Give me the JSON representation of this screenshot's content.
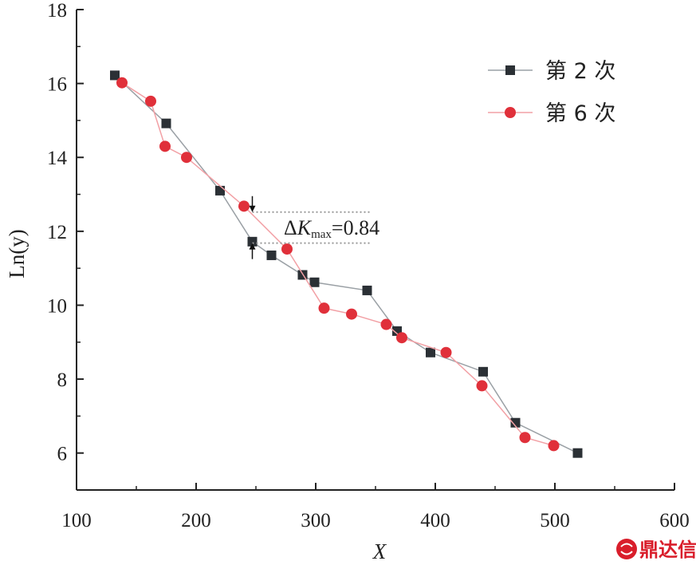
{
  "chart_data": {
    "type": "line",
    "xlabel": "X",
    "ylabel": "Ln(y)",
    "xlim": [
      100,
      600
    ],
    "ylim": [
      5,
      18
    ],
    "x_ticks": [
      100,
      200,
      300,
      400,
      500,
      600
    ],
    "y_ticks": [
      6,
      8,
      10,
      12,
      14,
      16,
      18
    ],
    "grid": false,
    "legend_position": "top-right",
    "series": [
      {
        "name": "第 2 次",
        "color": "#2b3035",
        "line_color": "#9aa0a5",
        "marker": "square",
        "points": [
          [
            132,
            16.22
          ],
          [
            175,
            14.92
          ],
          [
            220,
            13.1
          ],
          [
            247,
            11.72
          ],
          [
            263,
            11.35
          ],
          [
            289,
            10.82
          ],
          [
            299,
            10.62
          ],
          [
            343,
            10.4
          ],
          [
            368,
            9.3
          ],
          [
            396,
            8.72
          ],
          [
            440,
            8.2
          ],
          [
            467,
            6.82
          ],
          [
            519,
            6.0
          ]
        ]
      },
      {
        "name": "第 6 次",
        "color": "#e0303a",
        "line_color": "#f2a0a5",
        "marker": "circle",
        "points": [
          [
            138,
            16.02
          ],
          [
            162,
            15.52
          ],
          [
            174,
            14.3
          ],
          [
            192,
            14.0
          ],
          [
            240,
            12.68
          ],
          [
            276,
            11.52
          ],
          [
            307,
            9.92
          ],
          [
            330,
            9.76
          ],
          [
            359,
            9.48
          ],
          [
            372,
            9.12
          ],
          [
            409,
            8.72
          ],
          [
            439,
            7.82
          ],
          [
            475,
            6.42
          ],
          [
            499,
            6.2
          ]
        ]
      }
    ],
    "annotation": {
      "delta": "Δ",
      "symbol": "K",
      "subscript": "max",
      "value_text": "=0.84",
      "x": 247,
      "y_upper": 12.52,
      "y_lower": 11.68
    }
  },
  "watermark": {
    "icon": "fish-logo-icon",
    "text": "鼎达信"
  }
}
